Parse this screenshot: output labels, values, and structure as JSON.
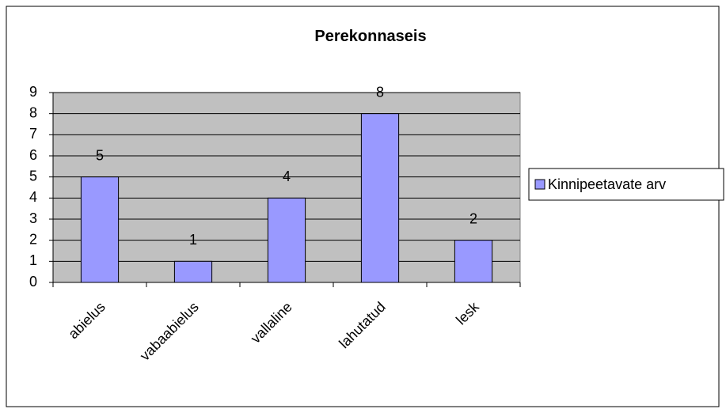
{
  "chart_data": {
    "type": "bar",
    "title": "Perekonnaseis",
    "categories": [
      "abielus",
      "vabaabielus",
      "vallaline",
      "lahutatud",
      "lesk"
    ],
    "series": [
      {
        "name": "Kinnipeetavate arv",
        "color": "#9999ff",
        "values": [
          5,
          1,
          4,
          8,
          2
        ]
      }
    ],
    "ylim": [
      0,
      9
    ],
    "yticks": [
      0,
      1,
      2,
      3,
      4,
      5,
      6,
      7,
      8,
      9
    ],
    "grid": true,
    "legend": "right"
  }
}
